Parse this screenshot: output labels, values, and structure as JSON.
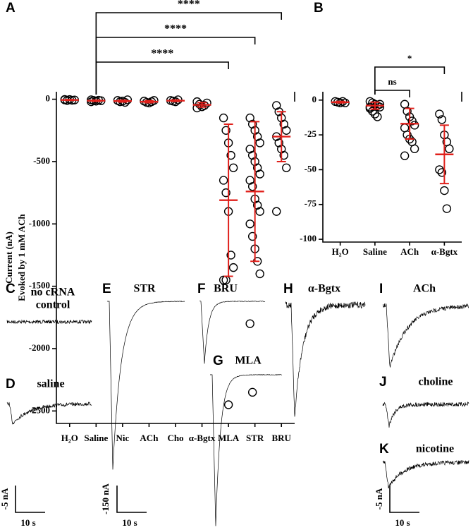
{
  "chart_data": [
    {
      "type": "dot",
      "panel": "A",
      "ylabel": [
        "Current (nA)",
        "Evoked by 1 mM ACh"
      ],
      "categories": [
        "H₂O",
        "Saline",
        "Nic",
        "ACh",
        "Cho",
        "α-Bgtx",
        "MLA",
        "STR",
        "BRU"
      ],
      "values": [
        [
          -5,
          -10,
          -3,
          -8,
          -6,
          -2
        ],
        [
          -5,
          -10,
          -15,
          -8,
          -12,
          -20
        ],
        [
          -10,
          -20,
          -15,
          -25,
          -5
        ],
        [
          -15,
          -25,
          -30,
          -20,
          -10
        ],
        [
          -10,
          -15,
          -20,
          -5
        ],
        [
          -20,
          -40,
          -60,
          -50,
          -30,
          -70
        ],
        [
          -150,
          -250,
          -350,
          -450,
          -550,
          -650,
          -750,
          -900,
          -1250,
          -1350,
          -1450,
          -1450,
          -2450
        ],
        [
          -150,
          -200,
          -250,
          -300,
          -350,
          -400,
          -450,
          -500,
          -550,
          -600,
          -650,
          -700,
          -800,
          -850,
          -900,
          -1000,
          -1100,
          -1200,
          -1300,
          -1400,
          -1800,
          -2350
        ],
        [
          -50,
          -100,
          -150,
          -200,
          -250,
          -300,
          -350,
          -400,
          -450,
          -550,
          -900
        ]
      ],
      "means": [
        -6,
        -12,
        -15,
        -20,
        -12,
        -45,
        -810,
        -740,
        -300
      ],
      "sds": [
        3,
        5,
        7,
        8,
        6,
        18,
        610,
        560,
        200
      ],
      "color": "#e0201b",
      "ylim": [
        -2600,
        60
      ],
      "yticks": [
        0,
        -500,
        -1000,
        -1500,
        -2000,
        -2500
      ],
      "annotations": [
        {
          "from": "Saline",
          "to": "MLA",
          "text": "****"
        },
        {
          "from": "Saline",
          "to": "STR",
          "text": "****"
        },
        {
          "from": "Saline",
          "to": "BRU",
          "text": "****"
        }
      ]
    },
    {
      "type": "dot",
      "panel": "B",
      "categories": [
        "H₂O",
        "Saline",
        "ACh",
        "α-Bgtx"
      ],
      "values": [
        [
          -1,
          -1.5,
          -2,
          -1,
          -2
        ],
        [
          -1,
          -2,
          -3,
          -4,
          -5,
          -6,
          -8,
          -10,
          -12,
          -3,
          -5
        ],
        [
          -3,
          -8,
          -12,
          -15,
          -18,
          -20,
          -25,
          -28,
          -30,
          -35,
          -40
        ],
        [
          -10,
          -14,
          -25,
          -30,
          -35,
          -50,
          -52,
          -65,
          -78
        ]
      ],
      "means": [
        -1.5,
        -4,
        -17,
        -39
      ],
      "sds": [
        0.5,
        2.5,
        11,
        21
      ],
      "color": "#e0201b",
      "ylim": [
        -102,
        6
      ],
      "yticks": [
        0,
        -25,
        -50,
        -75,
        -100
      ],
      "annotations": [
        {
          "from": "Saline",
          "to": "ACh",
          "text": "ns"
        },
        {
          "from": "Saline",
          "to": "α-Bgtx",
          "text": "*"
        }
      ]
    }
  ],
  "traces": [
    {
      "letter": "C",
      "label": [
        "no cRNA",
        "control"
      ]
    },
    {
      "letter": "D",
      "label": [
        "saline"
      ]
    },
    {
      "letter": "E",
      "label": [
        "STR"
      ]
    },
    {
      "letter": "F",
      "label": [
        "BRU"
      ]
    },
    {
      "letter": "G",
      "label": [
        "MLA"
      ]
    },
    {
      "letter": "H",
      "label": [
        "α-Bgtx"
      ]
    },
    {
      "letter": "I",
      "label": [
        "ACh"
      ]
    },
    {
      "letter": "J",
      "label": [
        "choline"
      ]
    },
    {
      "letter": "K",
      "label": [
        "nicotine"
      ]
    }
  ],
  "scale_bars": [
    {
      "amplitude": "-5 nA",
      "time": "10 s"
    },
    {
      "amplitude": "-150 nA",
      "time": "10 s"
    },
    {
      "amplitude": "-5 nA",
      "time": "10 s"
    }
  ]
}
